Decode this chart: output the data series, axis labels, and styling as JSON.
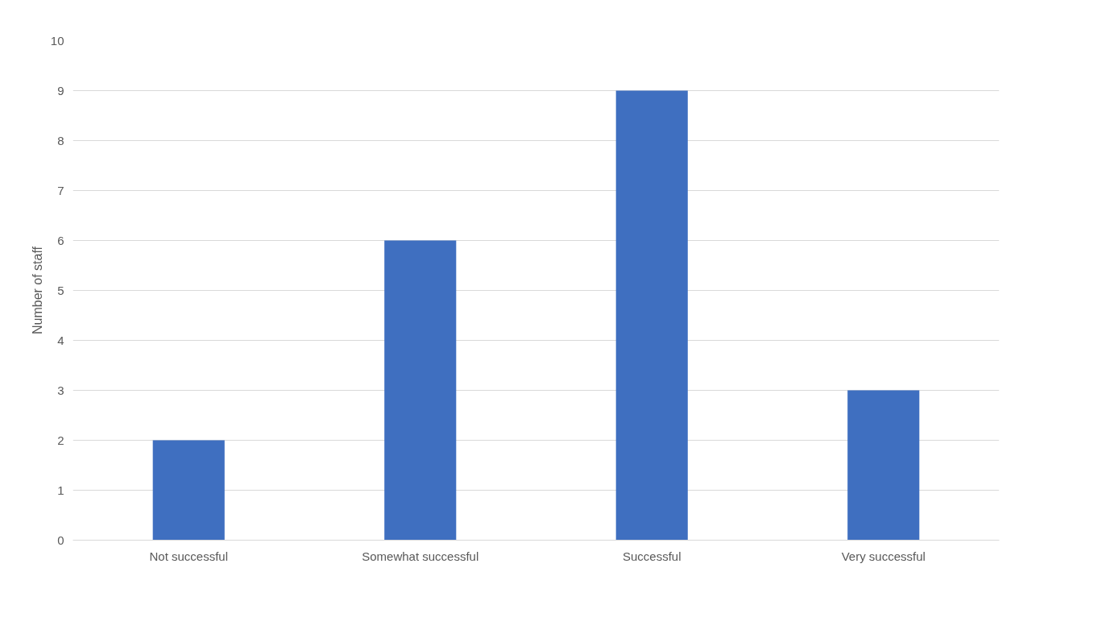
{
  "chart_data": {
    "type": "bar",
    "ylabel": "Number of staff",
    "categories": [
      "Not successful",
      "Somewhat successful",
      "Successful",
      "Very successful"
    ],
    "values": [
      2,
      6,
      9,
      3
    ],
    "color": "#3f6fc0",
    "ylim": [
      0,
      10
    ],
    "yticks": [
      0,
      1,
      2,
      3,
      4,
      5,
      6,
      7,
      8,
      9,
      10
    ],
    "grid": "y"
  }
}
